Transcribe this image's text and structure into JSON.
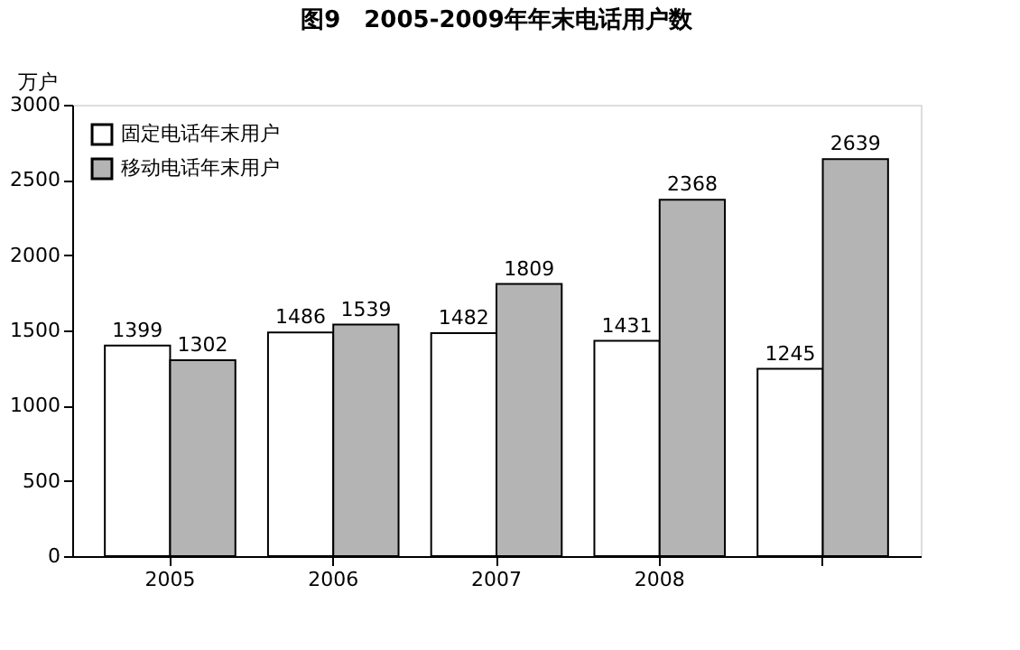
{
  "chart_data": {
    "type": "bar",
    "title": "图9　2005-2009年年末电话用户数",
    "ylabel": "万户",
    "categories": [
      "2005",
      "2006",
      "2007",
      "2008",
      null
    ],
    "series": [
      {
        "name": "固定电话年末用户",
        "color": "#ffffff",
        "values": [
          1399,
          1486,
          1482,
          1431,
          1245
        ]
      },
      {
        "name": "移动电话年末用户",
        "color": "#b4b4b4",
        "values": [
          1302,
          1539,
          1809,
          2368,
          2639
        ]
      }
    ],
    "ylim": [
      0,
      3000
    ],
    "yticks": [
      0,
      500,
      1000,
      1500,
      2000,
      2500,
      3000
    ],
    "grid": false,
    "legend": "top left",
    "data_labels": true
  }
}
